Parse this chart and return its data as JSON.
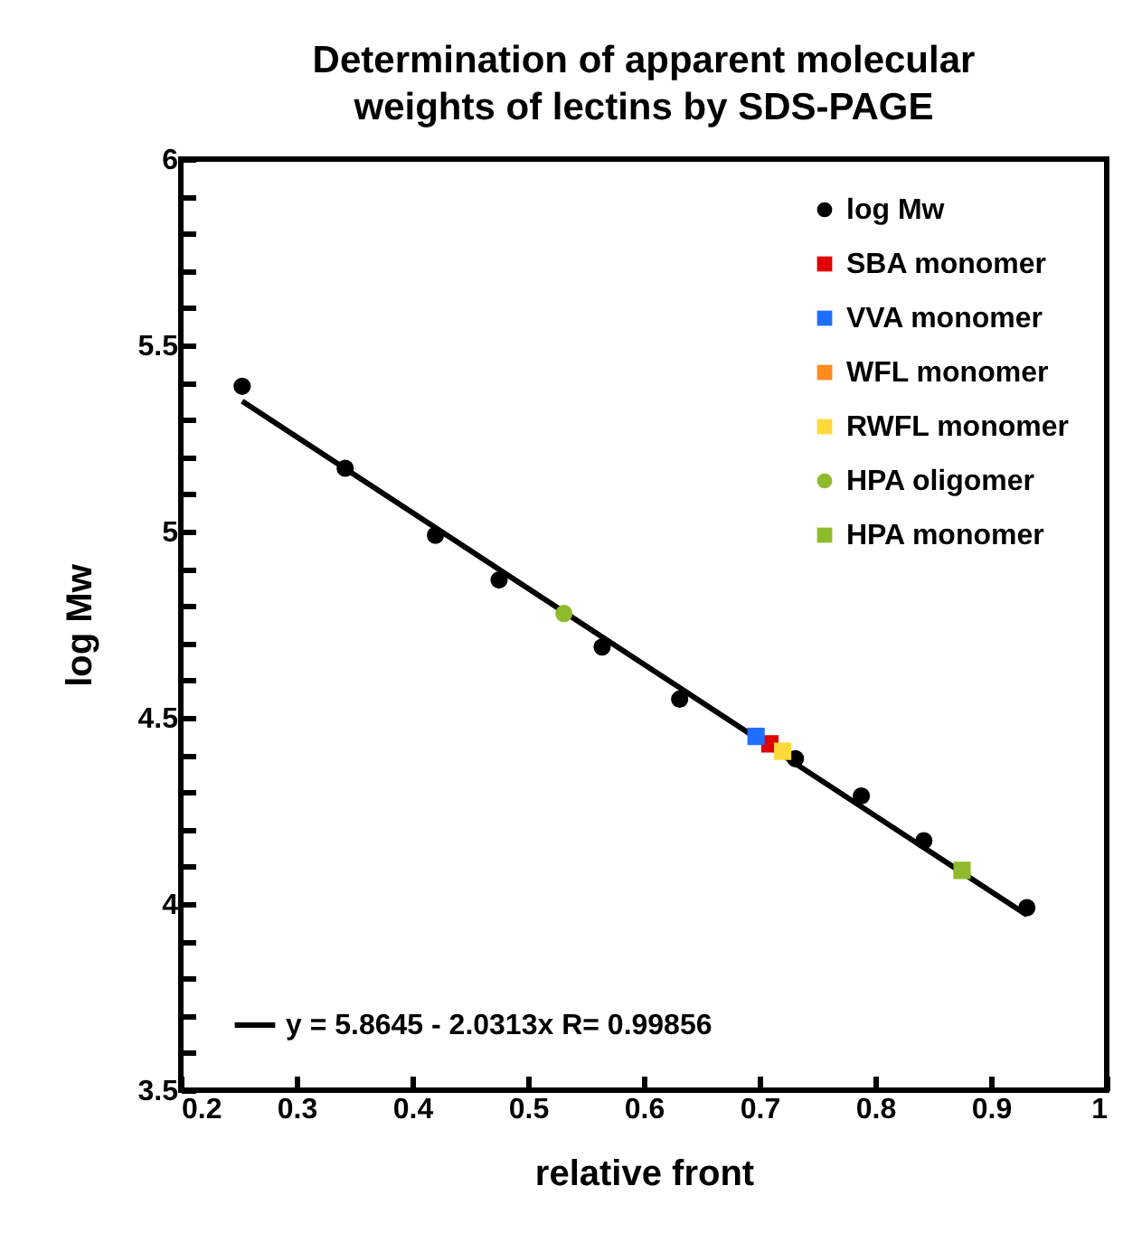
{
  "chart_data": {
    "type": "scatter",
    "title": "Determination of apparent molecular weights of lectins by SDS-PAGE",
    "xlabel": "relative front",
    "ylabel": "log Mw",
    "xlim": [
      0.2,
      1
    ],
    "ylim": [
      3.5,
      6
    ],
    "xticks": [
      0.2,
      0.3,
      0.4,
      0.5,
      0.6,
      0.7,
      0.8,
      0.9,
      1
    ],
    "yticks": [
      3.5,
      {
        "value": 3.6,
        "label": null
      },
      {
        "value": 3.7,
        "label": null
      },
      {
        "value": 3.8,
        "label": null
      },
      {
        "value": 3.9,
        "label": null
      },
      4,
      {
        "value": 4.1,
        "label": null
      },
      {
        "value": 4.2,
        "label": null
      },
      {
        "value": 4.3,
        "label": null
      },
      {
        "value": 4.4,
        "label": null
      },
      4.5,
      {
        "value": 4.6,
        "label": null
      },
      {
        "value": 4.7,
        "label": null
      },
      {
        "value": 4.8,
        "label": null
      },
      {
        "value": 4.9,
        "label": null
      },
      5,
      {
        "value": 5.1,
        "label": null
      },
      {
        "value": 5.2,
        "label": null
      },
      {
        "value": 5.3,
        "label": null
      },
      {
        "value": 5.4,
        "label": null
      },
      5.5,
      {
        "value": 5.6,
        "label": null
      },
      {
        "value": 5.7,
        "label": null
      },
      {
        "value": 5.8,
        "label": null
      },
      {
        "value": 5.9,
        "label": null
      },
      6
    ],
    "grid": false,
    "legend": "top right",
    "series": [
      {
        "name": "log Mw",
        "color": "#000000",
        "marker": "circle",
        "x": [
          0.253,
          0.342,
          0.42,
          0.475,
          0.564,
          0.631,
          0.731,
          0.788,
          0.842,
          0.931
        ],
        "values": [
          5.39,
          5.17,
          4.99,
          4.87,
          4.69,
          4.55,
          4.39,
          4.29,
          4.17,
          3.99
        ]
      },
      {
        "name": "SBA monomer",
        "color": "#e00000",
        "marker": "square",
        "x": [
          0.709
        ],
        "values": [
          4.43
        ]
      },
      {
        "name": "VVA monomer",
        "color": "#1f6fff",
        "marker": "square",
        "x": [
          0.697
        ],
        "values": [
          4.45
        ]
      },
      {
        "name": "WFL monomer",
        "color": "#ff8a1f",
        "marker": "square"
      },
      {
        "name": "RWFL monomer",
        "color": "#ffd83a",
        "marker": "square",
        "x": [
          0.72
        ],
        "values": [
          4.41
        ]
      },
      {
        "name": "HPA oligomer",
        "color": "#8fba2c",
        "marker": "circle",
        "x": [
          0.531
        ],
        "values": [
          4.78
        ]
      },
      {
        "name": "HPA monomer",
        "color": "#8fba2c",
        "marker": "square",
        "x": [
          0.875
        ],
        "values": [
          4.09
        ]
      },
      {
        "name": "y = 5.8645 - 2.0313x   R= 0.99856",
        "type": "line",
        "color": "#000000",
        "marker": "none",
        "line_style": "solid",
        "x": [
          0.253,
          0.931
        ],
        "values": [
          5.35,
          3.97
        ]
      }
    ]
  }
}
